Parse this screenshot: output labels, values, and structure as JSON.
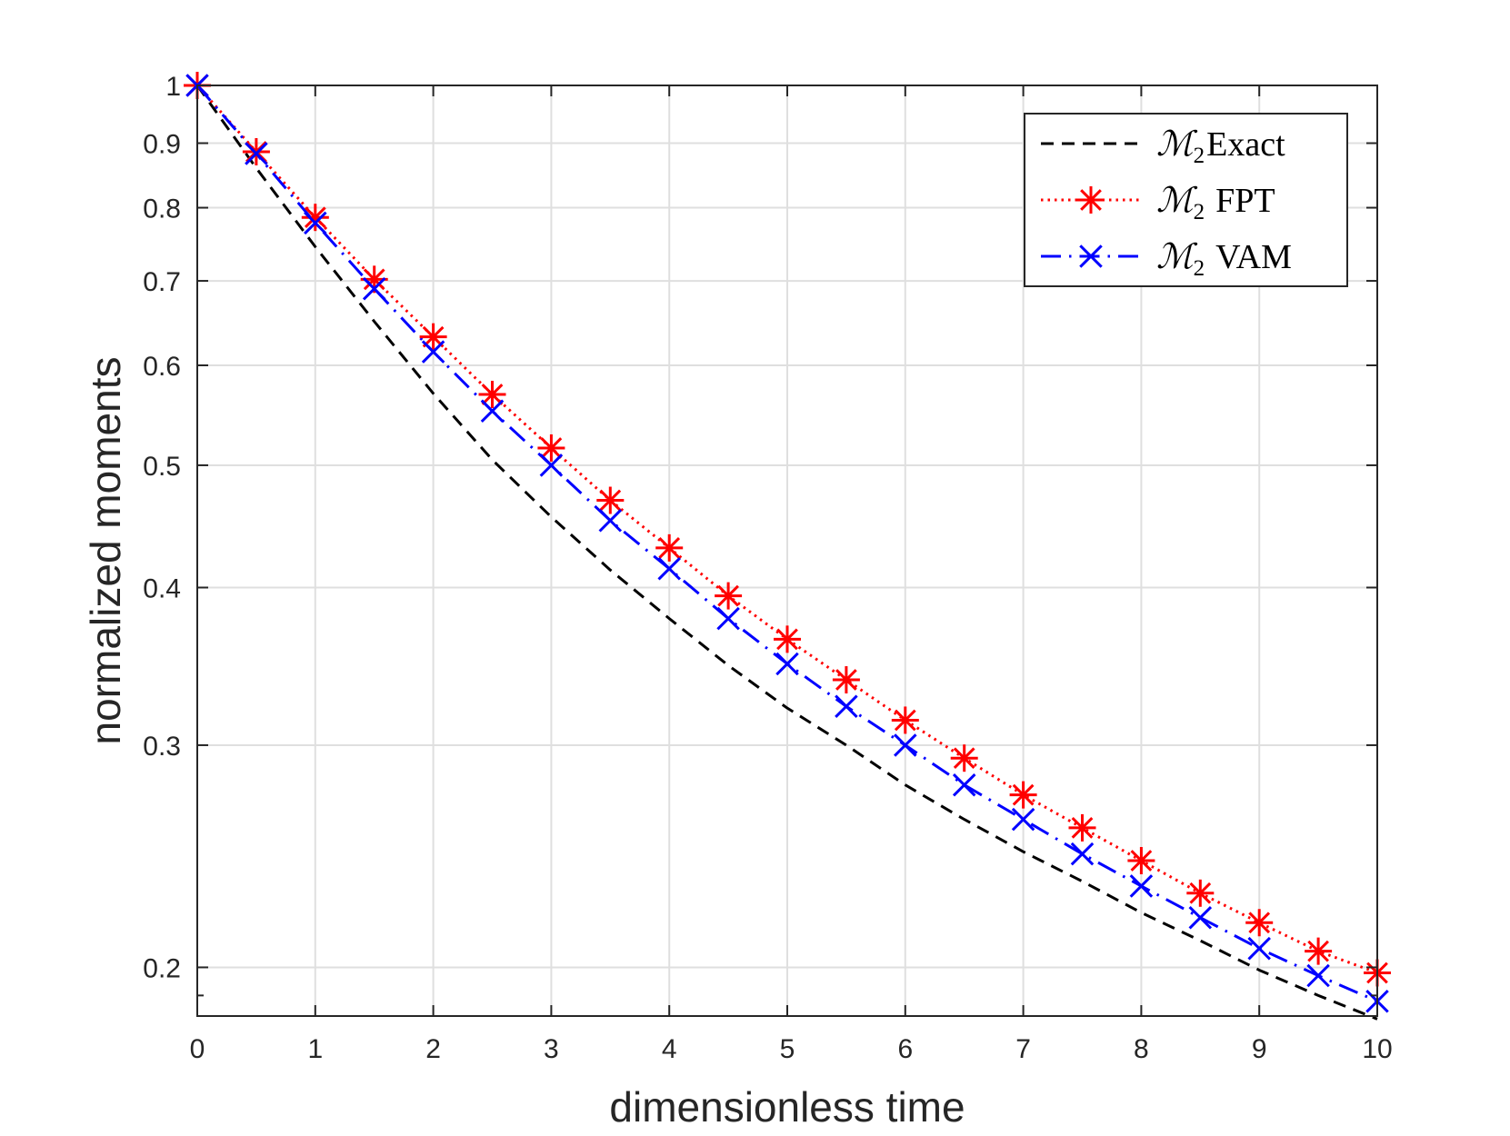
{
  "chart_data": {
    "type": "line",
    "title": "",
    "xlabel": "dimensionless time",
    "ylabel": "normalized moments",
    "xlim": [
      0,
      10
    ],
    "ylim": [
      0.183,
      1.0
    ],
    "yscale": "log",
    "grid": true,
    "legend_position": "top-right",
    "x_ticks": [
      0,
      1,
      2,
      3,
      4,
      5,
      6,
      7,
      8,
      9,
      10
    ],
    "y_ticks": [
      0.2,
      0.3,
      0.4,
      0.5,
      0.6,
      0.7,
      0.8,
      0.9,
      1
    ],
    "x_tick_labels": [
      "0",
      "1",
      "2",
      "3",
      "4",
      "5",
      "6",
      "7",
      "8",
      "9",
      "10"
    ],
    "y_tick_labels": [
      "0.2",
      "0.3",
      "0.4",
      "0.5",
      "0.6",
      "0.7",
      "0.8",
      "0.9",
      "1"
    ],
    "series": [
      {
        "name": "M2 Exact",
        "legend_math": "ℳ",
        "legend_sub": "2",
        "legend_text": "Exact",
        "color": "#000000",
        "linestyle": "dashed",
        "marker": "none",
        "x": [
          0,
          0.5,
          1,
          1.5,
          2,
          2.5,
          3,
          3.5,
          4,
          4.5,
          5,
          5.5,
          6,
          6.5,
          7,
          7.5,
          8,
          8.5,
          9,
          9.5,
          10
        ],
        "values": [
          1.0,
          0.86,
          0.745,
          0.65,
          0.57,
          0.505,
          0.455,
          0.413,
          0.378,
          0.347,
          0.321,
          0.3,
          0.279,
          0.262,
          0.247,
          0.234,
          0.221,
          0.21,
          0.199,
          0.19,
          0.182
        ]
      },
      {
        "name": "M2 FPT",
        "legend_math": "ℳ",
        "legend_sub": "2",
        "legend_text": "FPT",
        "color": "#ff0000",
        "linestyle": "dotted",
        "marker": "asterisk",
        "x": [
          0,
          0.5,
          1,
          1.5,
          2,
          2.5,
          3,
          3.5,
          4,
          4.5,
          5,
          5.5,
          6,
          6.5,
          7,
          7.5,
          8,
          8.5,
          9,
          9.5,
          10
        ],
        "values": [
          1.0,
          0.886,
          0.786,
          0.702,
          0.632,
          0.569,
          0.516,
          0.469,
          0.43,
          0.394,
          0.364,
          0.338,
          0.314,
          0.293,
          0.274,
          0.258,
          0.243,
          0.229,
          0.217,
          0.206,
          0.198
        ]
      },
      {
        "name": "M2 VAM",
        "legend_math": "ℳ",
        "legend_sub": "2",
        "legend_text": "VAM",
        "color": "#0000ff",
        "linestyle": "dash-dot",
        "marker": "x",
        "x": [
          0,
          0.5,
          1,
          1.5,
          2,
          2.5,
          3,
          3.5,
          4,
          4.5,
          5,
          5.5,
          6,
          6.5,
          7,
          7.5,
          8,
          8.5,
          9,
          9.5,
          10
        ],
        "values": [
          1.0,
          0.883,
          0.778,
          0.69,
          0.615,
          0.552,
          0.5,
          0.452,
          0.414,
          0.378,
          0.348,
          0.322,
          0.3,
          0.279,
          0.262,
          0.246,
          0.232,
          0.219,
          0.207,
          0.197,
          0.188
        ]
      }
    ]
  }
}
